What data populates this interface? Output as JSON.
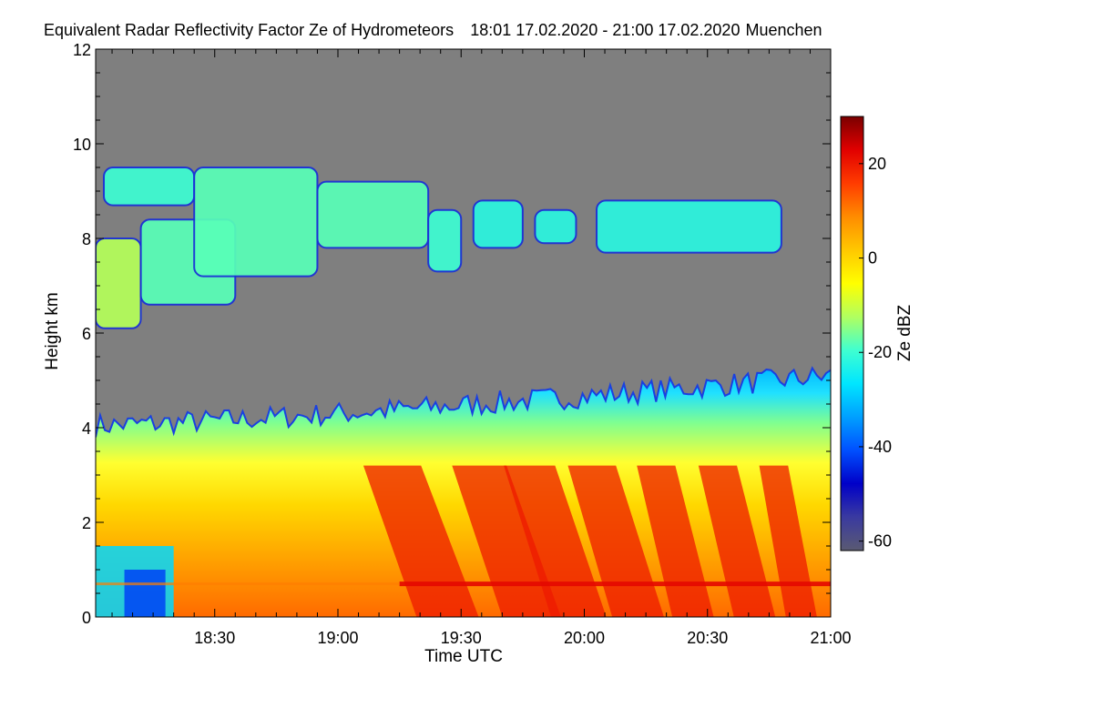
{
  "title": "Equivalent Radar Reflectivity Factor Ze of Hydrometeors",
  "time_range": "18:01 17.02.2020 - 21:00 17.02.2020",
  "location": "Muenchen",
  "chart_data": {
    "type": "heatmap",
    "title": "Equivalent Radar Reflectivity Factor Ze of Hydrometeors",
    "xlabel": "Time UTC",
    "ylabel": "Height km",
    "x_range": [
      "18:01",
      "21:00"
    ],
    "x_ticks": [
      "18:30",
      "19:00",
      "19:30",
      "20:00",
      "20:30",
      "21:00"
    ],
    "ylim": [
      0,
      12
    ],
    "y_ticks": [
      0,
      2,
      4,
      6,
      8,
      10,
      12
    ],
    "colorbar": {
      "label": "Ze dBZ",
      "range": [
        -62,
        30
      ],
      "ticks": [
        -60,
        -40,
        -20,
        0,
        20
      ],
      "colormap": [
        "#5a5a72",
        "#3a3aa0",
        "#0000c8",
        "#0050ff",
        "#00a0ff",
        "#00e6ff",
        "#40ffd0",
        "#b0ff60",
        "#ffff00",
        "#ffc800",
        "#ff8c00",
        "#ff3c00",
        "#e10000",
        "#7a0000"
      ]
    },
    "no_signal_color": "#7f7f7f",
    "features": [
      {
        "name": "low-level precipitation layer",
        "top_km": [
          3.8,
          5.2
        ],
        "ze_dbz_range": [
          -30,
          25
        ]
      },
      {
        "name": "bright band",
        "height_km": 0.7
      },
      {
        "name": "upper cloud layer",
        "height_km": [
          6,
          9.6
        ],
        "ze_dbz_range": [
          -40,
          -10
        ]
      }
    ]
  }
}
